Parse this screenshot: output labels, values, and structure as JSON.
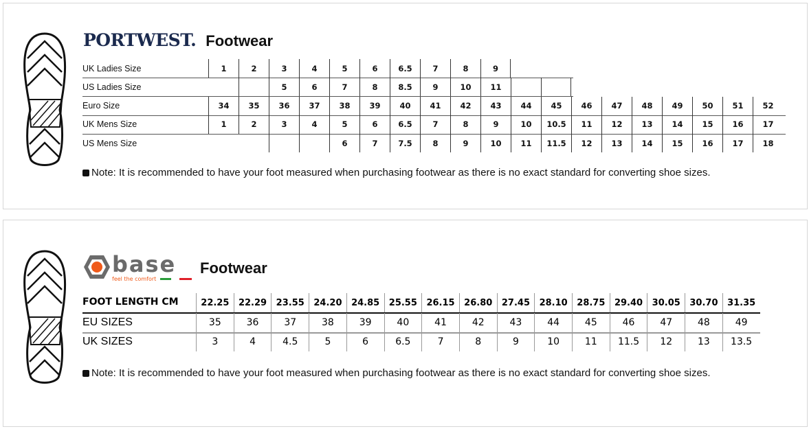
{
  "portwest": {
    "logo": "PORTWEST.",
    "title": "Footwear",
    "rows": [
      {
        "label": "UK Ladies Size",
        "values": [
          "1",
          "2",
          "3",
          "4",
          "5",
          "6",
          "6.5",
          "7",
          "8",
          "9"
        ]
      },
      {
        "label": "US Ladies Size",
        "values": [
          "",
          "",
          "5",
          "6",
          "7",
          "8",
          "8.5",
          "9",
          "10",
          "11",
          "",
          ""
        ]
      },
      {
        "label": "Euro Size",
        "values": [
          "34",
          "35",
          "36",
          "37",
          "38",
          "39",
          "40",
          "41",
          "42",
          "43",
          "44",
          "45",
          "46",
          "47",
          "48",
          "49",
          "50",
          "51",
          "52"
        ]
      },
      {
        "label": "UK Mens Size",
        "values": [
          "1",
          "2",
          "3",
          "4",
          "5",
          "6",
          "6.5",
          "7",
          "8",
          "9",
          "10",
          "10.5",
          "11",
          "12",
          "13",
          "14",
          "15",
          "16",
          "17"
        ]
      },
      {
        "label": "US Mens Size",
        "values": [
          "",
          "",
          "",
          "",
          "6",
          "7",
          "7.5",
          "8",
          "9",
          "10",
          "11",
          "11.5",
          "12",
          "13",
          "14",
          "15",
          "16",
          "17",
          "18"
        ]
      }
    ],
    "note": "Note: It is recommended to have your foot measured when purchasing footwear as there is no exact standard for converting shoe sizes."
  },
  "base": {
    "logo": "base",
    "tagline": "feel the comfort",
    "title": "Footwear",
    "rows": [
      {
        "label": "FOOT LENGTH CM",
        "values": [
          "22.25",
          "22.29",
          "23.55",
          "24.20",
          "24.85",
          "25.55",
          "26.15",
          "26.80",
          "27.45",
          "28.10",
          "28.75",
          "29.40",
          "30.05",
          "30.70",
          "31.35"
        ]
      },
      {
        "label": "EU SIZES",
        "values": [
          "35",
          "36",
          "37",
          "38",
          "39",
          "40",
          "41",
          "42",
          "43",
          "44",
          "45",
          "46",
          "47",
          "48",
          "49"
        ]
      },
      {
        "label": "UK SIZES",
        "values": [
          "3",
          "4",
          "4.5",
          "5",
          "6",
          "6.5",
          "7",
          "8",
          "9",
          "10",
          "11",
          "11.5",
          "12",
          "13",
          "13.5"
        ]
      }
    ],
    "note": "Note: It is recommended to have your foot measured when purchasing footwear as there is no exact standard for converting shoe sizes."
  },
  "colors": {
    "portwest_navy": "#1b2a4e",
    "base_orange": "#f05a1a",
    "base_grey": "#666666"
  }
}
